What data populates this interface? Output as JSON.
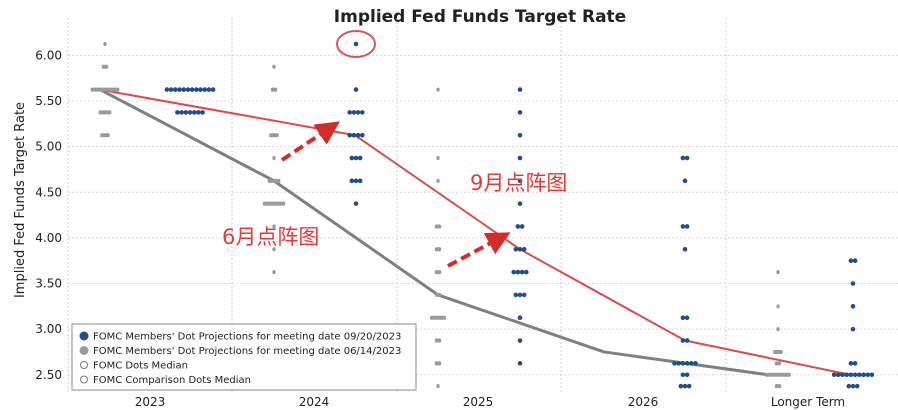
{
  "chart_data": {
    "type": "scatter",
    "title": "Implied Fed Funds Target Rate",
    "xlabel": "",
    "ylabel": "Implied Fed Funds Target Rate",
    "ylim": [
      2.3,
      6.3
    ],
    "y_ticks": [
      "6.00",
      "5.50",
      "5.00",
      "4.50",
      "4.00",
      "3.50",
      "3.00",
      "2.50"
    ],
    "x_ticks": [
      "2023",
      "2024",
      "2025",
      "2026",
      "Longer Term"
    ],
    "grid": true,
    "legend_position": "bottom-left",
    "legend": [
      {
        "label": "FOMC Members' Dot Projections for meeting date 09/20/2023",
        "marker": "filled",
        "color": "#1f4e8a"
      },
      {
        "label": "FOMC Members' Dot Projections for meeting date 06/14/2023",
        "marker": "filled",
        "color": "#9a9a9a"
      },
      {
        "label": "FOMC Dots Median",
        "marker": "hollow",
        "color": "#777777"
      },
      {
        "label": "FOMC Comparison Dots Median",
        "marker": "hollow",
        "color": "#777777"
      }
    ],
    "series": [
      {
        "marker_color": "#9a9a9a",
        "dots": [
          {
            "x": "2023",
            "y": 6.125,
            "n": 1
          },
          {
            "x": "2023",
            "y": 5.875,
            "n": 2
          },
          {
            "x": "2023",
            "y": 5.625,
            "n": 9
          },
          {
            "x": "2023",
            "y": 5.375,
            "n": 4
          },
          {
            "x": "2023",
            "y": 5.125,
            "n": 3
          },
          {
            "x": "2024",
            "y": 5.875,
            "n": 1
          },
          {
            "x": "2024",
            "y": 5.625,
            "n": 2
          },
          {
            "x": "2024",
            "y": 5.125,
            "n": 3
          },
          {
            "x": "2024",
            "y": 4.875,
            "n": 1
          },
          {
            "x": "2024",
            "y": 4.625,
            "n": 4
          },
          {
            "x": "2024",
            "y": 4.375,
            "n": 7
          },
          {
            "x": "2024",
            "y": 4.125,
            "n": 1
          },
          {
            "x": "2024",
            "y": 3.875,
            "n": 1
          },
          {
            "x": "2024",
            "y": 3.625,
            "n": 1
          },
          {
            "x": "2025",
            "y": 5.625,
            "n": 1
          },
          {
            "x": "2025",
            "y": 4.875,
            "n": 1
          },
          {
            "x": "2025",
            "y": 4.625,
            "n": 1
          },
          {
            "x": "2025",
            "y": 4.125,
            "n": 2
          },
          {
            "x": "2025",
            "y": 3.875,
            "n": 2
          },
          {
            "x": "2025",
            "y": 3.625,
            "n": 2
          },
          {
            "x": "2025",
            "y": 3.375,
            "n": 2
          },
          {
            "x": "2025",
            "y": 3.125,
            "n": 5
          },
          {
            "x": "2025",
            "y": 2.875,
            "n": 2
          },
          {
            "x": "2025",
            "y": 2.625,
            "n": 2
          },
          {
            "x": "2025",
            "y": 2.375,
            "n": 1
          },
          {
            "x": "Longer Term",
            "y": 3.625,
            "n": 1
          },
          {
            "x": "Longer Term",
            "y": 3.25,
            "n": 1
          },
          {
            "x": "Longer Term",
            "y": 3.0,
            "n": 1
          },
          {
            "x": "Longer Term",
            "y": 2.75,
            "n": 3
          },
          {
            "x": "Longer Term",
            "y": 2.625,
            "n": 2
          },
          {
            "x": "Longer Term",
            "y": 2.5,
            "n": 8
          },
          {
            "x": "Longer Term",
            "y": 2.375,
            "n": 2
          }
        ]
      },
      {
        "marker_color": "#1f4e8a",
        "dots": [
          {
            "x": "2023",
            "y": 5.625,
            "n": 12
          },
          {
            "x": "2023",
            "y": 5.375,
            "n": 7
          },
          {
            "x": "2024",
            "y": 6.125,
            "n": 1
          },
          {
            "x": "2024",
            "y": 5.625,
            "n": 1
          },
          {
            "x": "2024",
            "y": 5.375,
            "n": 4
          },
          {
            "x": "2024",
            "y": 5.125,
            "n": 4
          },
          {
            "x": "2024",
            "y": 4.875,
            "n": 3
          },
          {
            "x": "2024",
            "y": 4.625,
            "n": 3
          },
          {
            "x": "2024",
            "y": 4.375,
            "n": 1
          },
          {
            "x": "2025",
            "y": 5.625,
            "n": 1
          },
          {
            "x": "2025",
            "y": 5.375,
            "n": 1
          },
          {
            "x": "2025",
            "y": 5.125,
            "n": 1
          },
          {
            "x": "2025",
            "y": 4.875,
            "n": 1
          },
          {
            "x": "2025",
            "y": 4.625,
            "n": 1
          },
          {
            "x": "2025",
            "y": 4.375,
            "n": 1
          },
          {
            "x": "2025",
            "y": 4.125,
            "n": 2
          },
          {
            "x": "2025",
            "y": 3.875,
            "n": 3
          },
          {
            "x": "2025",
            "y": 3.625,
            "n": 4
          },
          {
            "x": "2025",
            "y": 3.375,
            "n": 3
          },
          {
            "x": "2025",
            "y": 3.125,
            "n": 1
          },
          {
            "x": "2025",
            "y": 2.875,
            "n": 1
          },
          {
            "x": "2025",
            "y": 2.625,
            "n": 1
          },
          {
            "x": "2026",
            "y": 4.875,
            "n": 2
          },
          {
            "x": "2026",
            "y": 4.625,
            "n": 1
          },
          {
            "x": "2026",
            "y": 4.125,
            "n": 2
          },
          {
            "x": "2026",
            "y": 3.875,
            "n": 1
          },
          {
            "x": "2026",
            "y": 3.125,
            "n": 2
          },
          {
            "x": "2026",
            "y": 2.875,
            "n": 2
          },
          {
            "x": "2026",
            "y": 2.625,
            "n": 6
          },
          {
            "x": "2026",
            "y": 2.5,
            "n": 2
          },
          {
            "x": "2026",
            "y": 2.375,
            "n": 3
          },
          {
            "x": "Longer Term",
            "y": 3.75,
            "n": 2
          },
          {
            "x": "Longer Term",
            "y": 3.5,
            "n": 1
          },
          {
            "x": "Longer Term",
            "y": 3.25,
            "n": 1
          },
          {
            "x": "Longer Term",
            "y": 3.0,
            "n": 1
          },
          {
            "x": "Longer Term",
            "y": 2.625,
            "n": 2
          },
          {
            "x": "Longer Term",
            "y": 2.5,
            "n": 10
          },
          {
            "x": "Longer Term",
            "y": 2.375,
            "n": 3
          }
        ]
      }
    ],
    "median_lines": [
      {
        "color": "#e04a4a",
        "points": [
          [
            "2023",
            5.625
          ],
          [
            "2024",
            5.125
          ],
          [
            "2025",
            3.875
          ],
          [
            "2026",
            2.875
          ],
          [
            "Longer Term",
            2.5
          ]
        ]
      },
      {
        "color": "#808080",
        "points": [
          [
            "2023",
            5.625
          ],
          [
            "2024",
            4.625
          ],
          [
            "2025",
            3.375
          ],
          [
            "2026",
            2.75
          ],
          [
            "Longer Term",
            2.5
          ]
        ]
      }
    ],
    "annotations": [
      {
        "text": "6月点阵图",
        "color": "#e33a3a"
      },
      {
        "text": "9月点阵图",
        "color": "#e33a3a"
      }
    ],
    "highlight": {
      "x": "2024",
      "y": 6.125,
      "shape": "circle",
      "color": "#e0505a"
    },
    "arrows_color": "#d42a2a"
  }
}
